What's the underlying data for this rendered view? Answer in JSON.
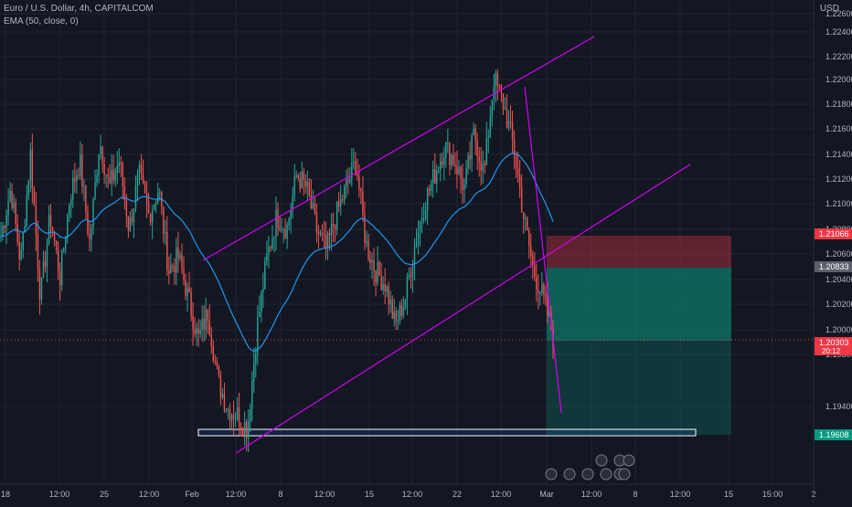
{
  "header": {
    "symbol_line": "Euro / U.S. Dollar, 4h, CAPITALCOM",
    "indicator_line": "EMA (50, close, 0)"
  },
  "price_axis": {
    "currency": "USD",
    "ticks": [
      "1.22600",
      "1.22400",
      "1.22200",
      "1.22000",
      "1.21800",
      "1.21600",
      "1.21400",
      "1.21200",
      "1.21000",
      "1.20800",
      "1.20600",
      "1.20400",
      "1.20200",
      "1.20000",
      "1.19800",
      "1.19400"
    ],
    "labels": [
      {
        "text": "1.21066",
        "color": "#f23645"
      },
      {
        "text": "1.20833",
        "color": "#5d606b"
      },
      {
        "text": "1.20303",
        "color": "#f23645",
        "sub": "20:12"
      },
      {
        "text": "1.19608",
        "color": "#089981"
      }
    ]
  },
  "time_axis": {
    "ticks": [
      "18",
      "12:00",
      "25",
      "12:00",
      "Feb",
      "12:00",
      "8",
      "12:00",
      "15",
      "12:00",
      "22",
      "12:00",
      "Mar",
      "12:00",
      "8",
      "12:00",
      "15",
      "15:00",
      "2"
    ]
  },
  "colors": {
    "background": "#131722",
    "grid": "#1f2430",
    "candle_up": "#26a69a",
    "candle_down": "#ef5350",
    "ema": "#2196f3",
    "channel": "#d500f9",
    "zone_border": "#ffffff",
    "zone_fill": "#2962ff",
    "stop_zone": "#f23645",
    "target_zone": "#089981"
  },
  "chart_data": {
    "type": "candlestick",
    "symbol": "EURUSD",
    "timeframe": "4h",
    "price_range": [
      1.193,
      1.227
    ],
    "key_levels": {
      "stop_loss": 1.21066,
      "entry": 1.20833,
      "current": 1.20303,
      "take_profit": 1.19608
    },
    "swing_path": [
      1.2105,
      1.214,
      1.2085,
      1.2165,
      1.206,
      1.212,
      1.2075,
      1.2135,
      1.216,
      1.21,
      1.2175,
      1.214,
      1.216,
      1.211,
      1.215,
      1.212,
      1.214,
      1.208,
      1.209,
      1.206,
      1.203,
      1.205,
      1.2,
      1.198,
      1.1975,
      1.1965,
      1.204,
      1.209,
      1.212,
      1.211,
      1.215,
      1.214,
      1.211,
      1.2095,
      1.212,
      1.214,
      1.216,
      1.21,
      1.208,
      1.207,
      1.204,
      1.206,
      1.21,
      1.213,
      1.215,
      1.217,
      1.216,
      1.214,
      1.218,
      1.215,
      1.222,
      1.22,
      1.217,
      1.212,
      1.208,
      1.206,
      1.2033
    ]
  },
  "icons": [
    "event-flag-icon",
    "us-flag-icon",
    "eu-flag-icon",
    "economic-event-icon"
  ]
}
